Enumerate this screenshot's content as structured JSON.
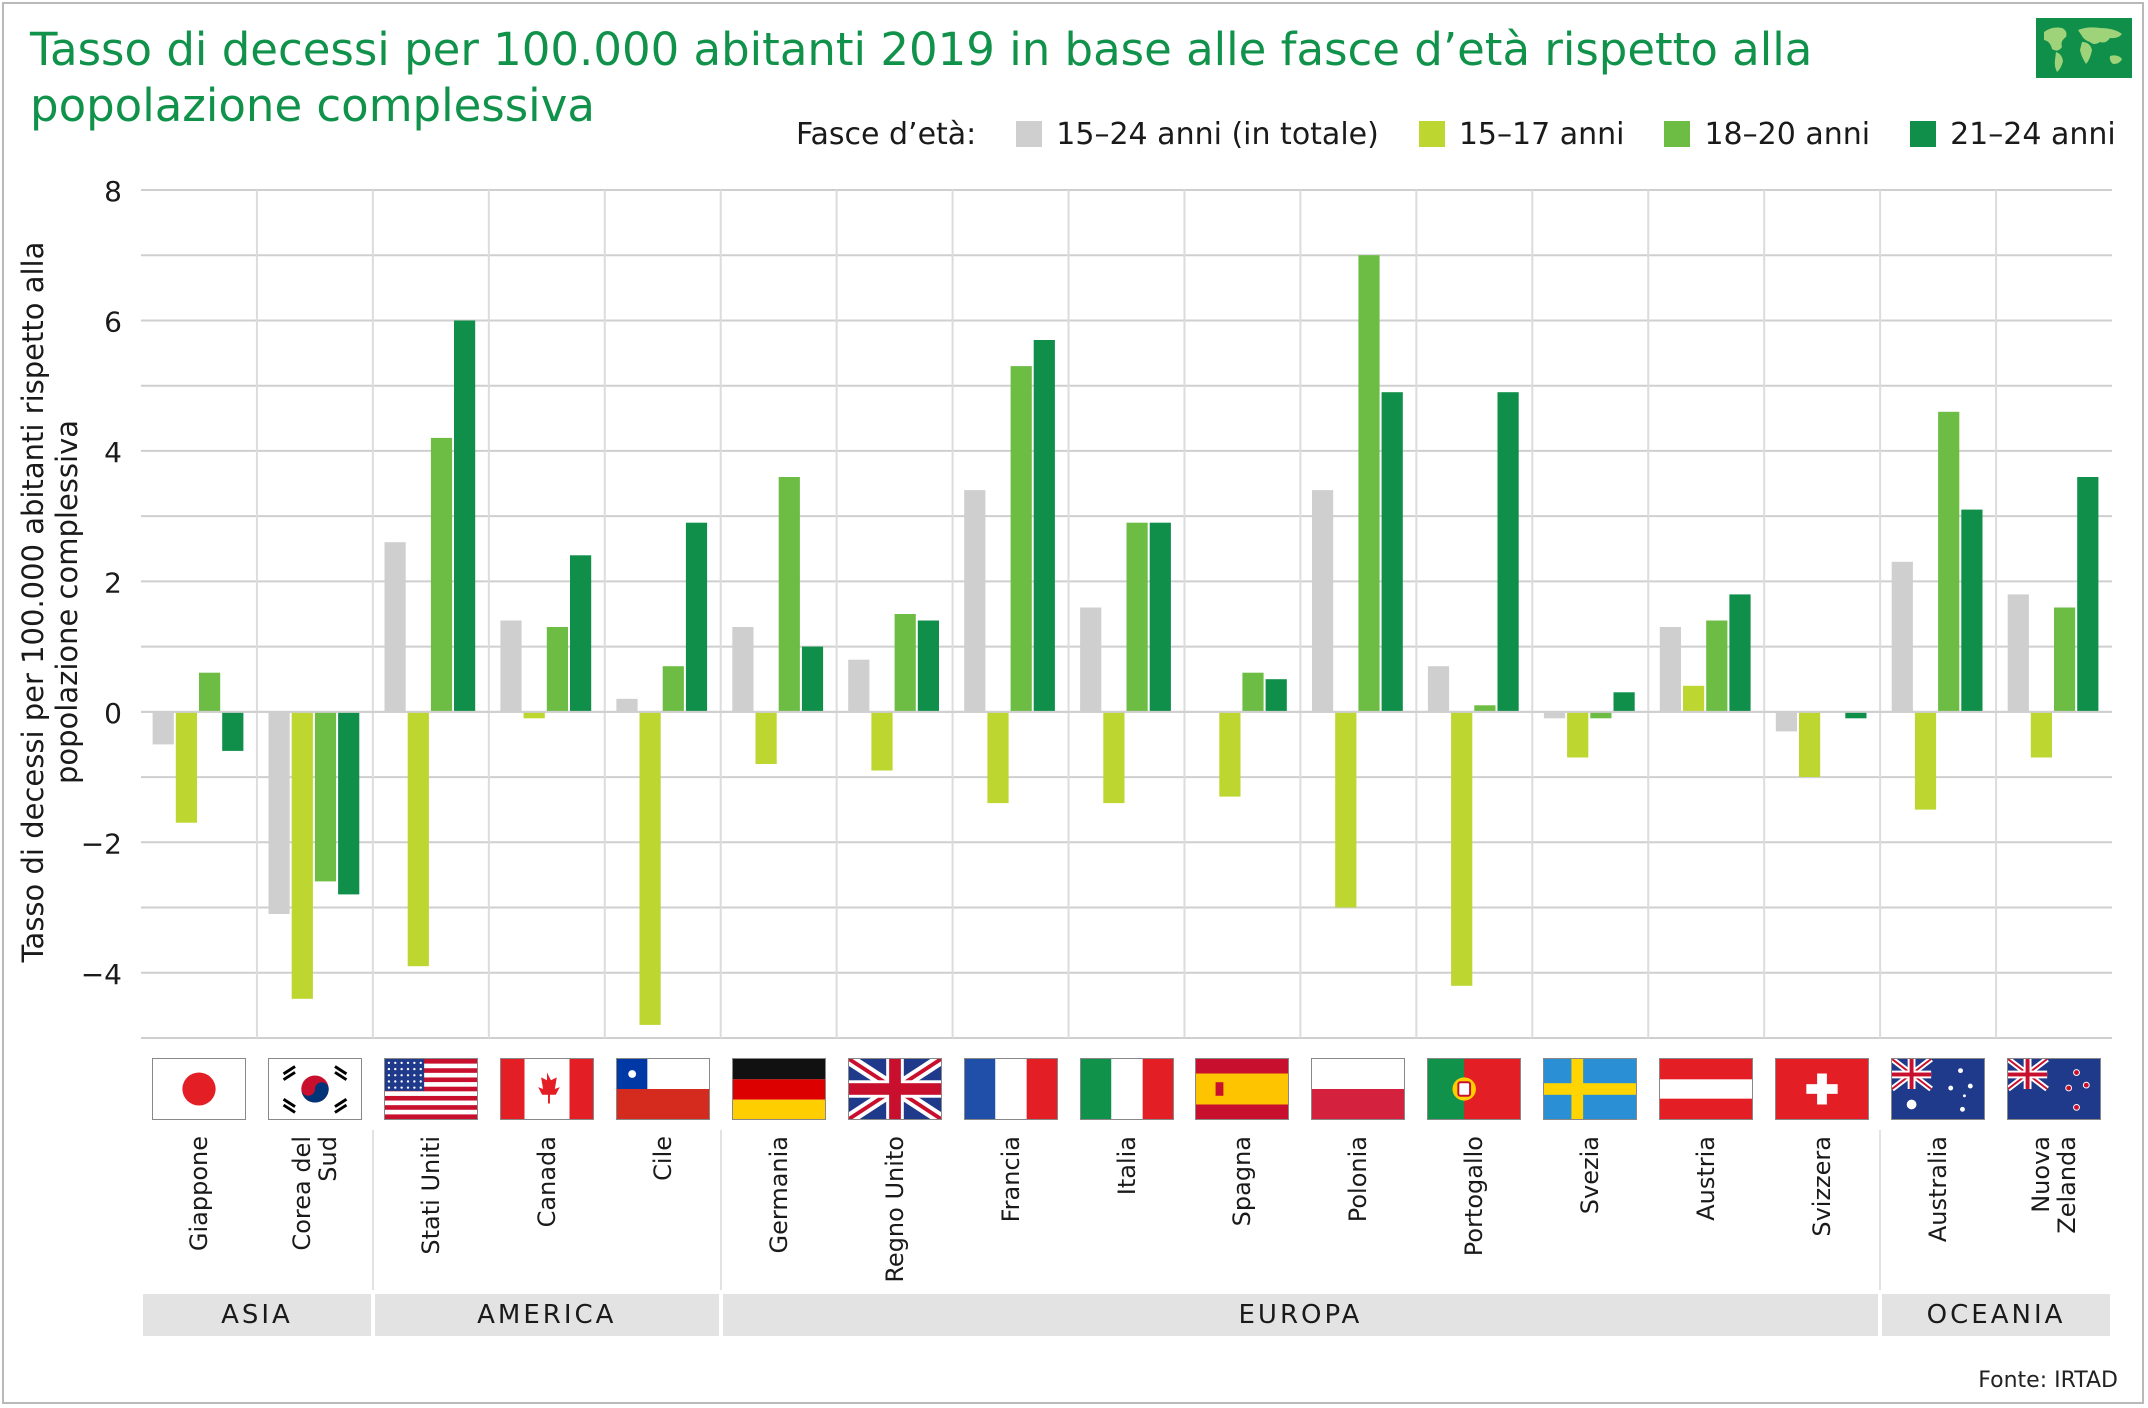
{
  "title": "Tasso di decessi per 100.000 abitanti 2019 in base alle fasce d’età rispetto alla popolazione complessiva",
  "source": "Fonte: IRTAD",
  "globe_icon": "world-map-icon",
  "legend": {
    "label": "Fasce d’età:",
    "items": [
      {
        "name": "15–24 anni (in totale)",
        "color": "#cfcfcf"
      },
      {
        "name": "15–17 anni",
        "color": "#bdd630"
      },
      {
        "name": "18–20 anni",
        "color": "#6dbd45"
      },
      {
        "name": "21–24 anni",
        "color": "#0f8f4a"
      }
    ]
  },
  "regions": [
    {
      "name": "ASIA",
      "countries": 2
    },
    {
      "name": "AMERICA",
      "countries": 3
    },
    {
      "name": "EUROPA",
      "countries": 10
    },
    {
      "name": "OCEANIA",
      "countries": 2
    }
  ],
  "chart_data": {
    "type": "bar",
    "ylabel": "Tasso di decessi per 100.000 abitanti rispetto alla popolazione complessiva",
    "ylim": [
      -5,
      8
    ],
    "yticks": [
      "8",
      "6",
      "4",
      "2",
      "0",
      "−2",
      "−4"
    ],
    "ytick_values": [
      8,
      6,
      4,
      2,
      0,
      -2,
      -4
    ],
    "grid": true,
    "legend_position": "top-right",
    "categories": [
      "Giappone",
      "Corea del\nSud",
      "Stati Uniti",
      "Canada",
      "Cile",
      "Germania",
      "Regno Unito",
      "Francia",
      "Italia",
      "Spagna",
      "Polonia",
      "Portogallo",
      "Svezia",
      "Austria",
      "Svizzera",
      "Australia",
      "Nuova\nZelanda"
    ],
    "flags": [
      "japan-flag-icon",
      "south-korea-flag-icon",
      "usa-flag-icon",
      "canada-flag-icon",
      "chile-flag-icon",
      "germany-flag-icon",
      "uk-flag-icon",
      "france-flag-icon",
      "italy-flag-icon",
      "spain-flag-icon",
      "poland-flag-icon",
      "portugal-flag-icon",
      "sweden-flag-icon",
      "austria-flag-icon",
      "switzerland-flag-icon",
      "australia-flag-icon",
      "new-zealand-flag-icon"
    ],
    "series": [
      {
        "name": "15–24 anni (in totale)",
        "color": "#cfcfcf",
        "values": [
          -0.5,
          -3.1,
          2.6,
          1.4,
          0.2,
          1.3,
          0.8,
          3.4,
          1.6,
          0,
          3.4,
          0.7,
          -0.1,
          1.3,
          -0.3,
          2.3,
          1.8
        ]
      },
      {
        "name": "15–17 anni",
        "color": "#bdd630",
        "values": [
          -1.7,
          -4.4,
          -3.9,
          -0.1,
          -4.8,
          -0.8,
          -0.9,
          -1.4,
          -1.4,
          -1.3,
          -3.0,
          -4.2,
          -0.7,
          0.4,
          -1.0,
          -1.5,
          -0.7
        ]
      },
      {
        "name": "18–20 anni",
        "color": "#6dbd45",
        "values": [
          0.6,
          -2.6,
          4.2,
          1.3,
          0.7,
          3.6,
          1.5,
          5.3,
          2.9,
          0.6,
          7.0,
          0.1,
          -0.1,
          1.4,
          0,
          4.6,
          1.6
        ]
      },
      {
        "name": "21–24 anni",
        "color": "#0f8f4a",
        "values": [
          -0.6,
          -2.8,
          6.0,
          2.4,
          2.9,
          1.0,
          1.4,
          5.7,
          2.9,
          0.5,
          4.9,
          4.9,
          0.3,
          1.8,
          -0.1,
          3.1,
          3.6
        ]
      }
    ]
  }
}
